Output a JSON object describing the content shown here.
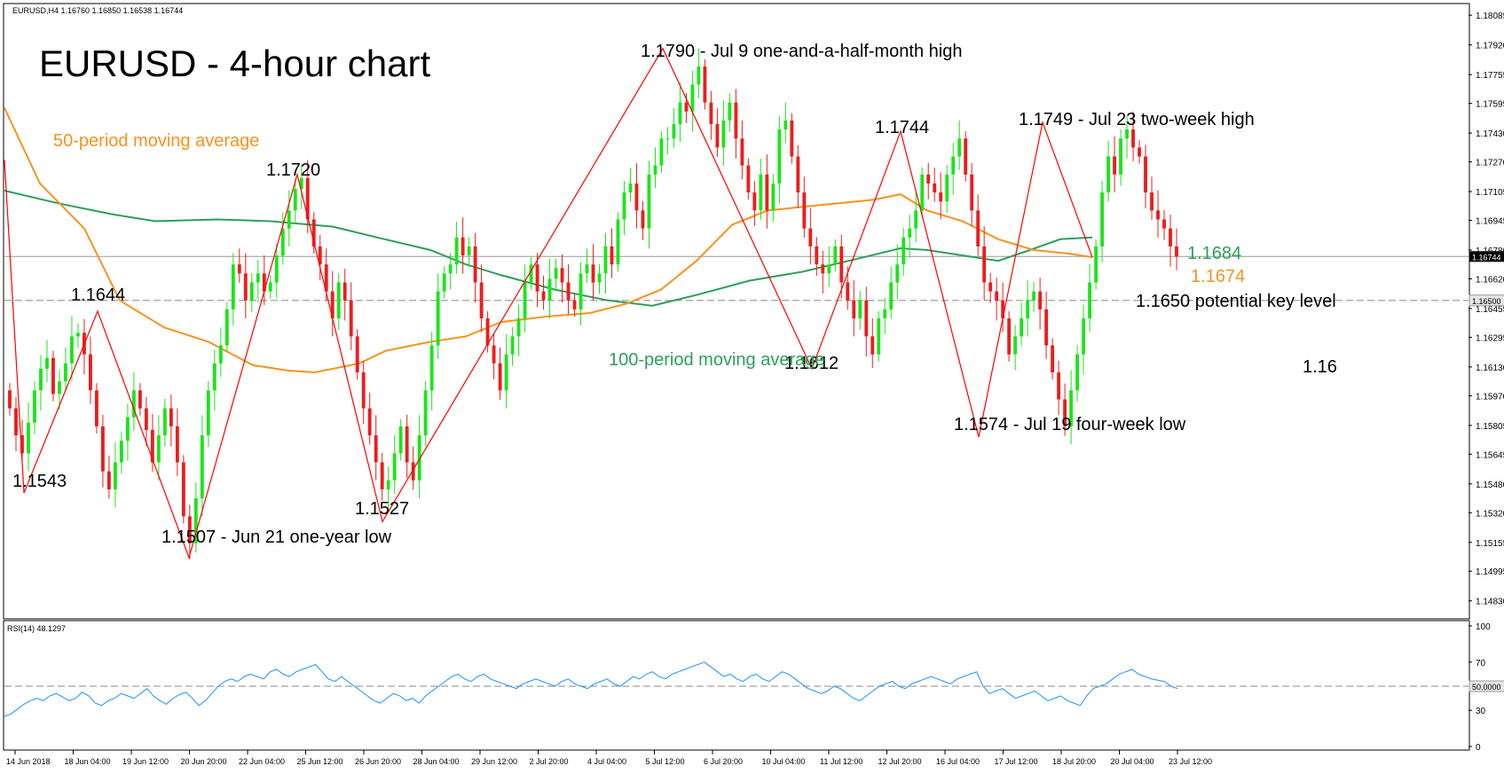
{
  "chart_data": {
    "type": "candlestick",
    "symbol_info": "EURUSD,H4  1.16760 1.16850 1.16538 1.16744",
    "title": "EURUSD - 4-hour chart",
    "ylim": [
      1.1473,
      1.1815
    ],
    "y_ticks": [
      "1.18085",
      "1.17920",
      "1.17755",
      "1.17595",
      "1.17430",
      "1.17270",
      "1.17105",
      "1.16945",
      "1.16780",
      "1.16620",
      "1.16455",
      "1.16295",
      "1.16130",
      "1.15970",
      "1.15805",
      "1.15645",
      "1.15480",
      "1.15320",
      "1.15155",
      "1.14995",
      "1.14830"
    ],
    "x_ticks": [
      "14 Jun 2018",
      "18 Jun 04:00",
      "19 Jun 12:00",
      "20 Jun 20:00",
      "22 Jun 04:00",
      "25 Jun 12:00",
      "26 Jun 20:00",
      "28 Jun 04:00",
      "29 Jun 12:00",
      "2 Jul 20:00",
      "4 Jul 04:00",
      "5 Jul 12:00",
      "6 Jul 20:00",
      "10 Jul 04:00",
      "11 Jul 12:00",
      "12 Jul 20:00",
      "16 Jul 04:00",
      "17 Jul 12:00",
      "18 Jul 20:00",
      "20 Jul 04:00",
      "23 Jul 12:00"
    ],
    "current_price_label": "1.16744",
    "key_level_label": "1.16500",
    "key_level": 1.165,
    "close": [
      1.159,
      1.1575,
      1.1565,
      1.1582,
      1.16,
      1.1612,
      1.1618,
      1.1598,
      1.1605,
      1.1615,
      1.163,
      1.1632,
      1.162,
      1.16,
      1.158,
      1.1555,
      1.1545,
      1.156,
      1.1572,
      1.1585,
      1.16,
      1.159,
      1.1578,
      1.156,
      1.1575,
      1.159,
      1.158,
      1.156,
      1.153,
      1.1515,
      1.154,
      1.1575,
      1.16,
      1.1615,
      1.1625,
      1.1645,
      1.167,
      1.1665,
      1.165,
      1.166,
      1.1665,
      1.1655,
      1.166,
      1.1675,
      1.169,
      1.17,
      1.1712,
      1.1718,
      1.1695,
      1.168,
      1.167,
      1.1655,
      1.164,
      1.166,
      1.165,
      1.163,
      1.161,
      1.159,
      1.1575,
      1.156,
      1.1545,
      1.155,
      1.1565,
      1.158,
      1.156,
      1.155,
      1.1575,
      1.16,
      1.1625,
      1.1655,
      1.1665,
      1.167,
      1.1685,
      1.1675,
      1.168,
      1.166,
      1.164,
      1.1625,
      1.1615,
      1.16,
      1.162,
      1.163,
      1.164,
      1.166,
      1.167,
      1.1655,
      1.165,
      1.1662,
      1.1668,
      1.166,
      1.165,
      1.1645,
      1.1665,
      1.167,
      1.166,
      1.1665,
      1.168,
      1.167,
      1.1695,
      1.171,
      1.1715,
      1.17,
      1.169,
      1.172,
      1.1725,
      1.174,
      1.174,
      1.1748,
      1.176,
      1.1755,
      1.177,
      1.178,
      1.176,
      1.1748,
      1.1735,
      1.175,
      1.176,
      1.174,
      1.1725,
      1.171,
      1.17,
      1.172,
      1.17,
      1.1715,
      1.1745,
      1.175,
      1.173,
      1.171,
      1.169,
      1.168,
      1.167,
      1.1665,
      1.167,
      1.168,
      1.166,
      1.165,
      1.164,
      1.165,
      1.163,
      1.162,
      1.164,
      1.1645,
      1.166,
      1.167,
      1.1685,
      1.169,
      1.17,
      1.172,
      1.1715,
      1.171,
      1.1705,
      1.172,
      1.173,
      1.174,
      1.172,
      1.17,
      1.168,
      1.166,
      1.1655,
      1.165,
      1.164,
      1.162,
      1.163,
      1.164,
      1.165,
      1.1655,
      1.1645,
      1.1625,
      1.161,
      1.1595,
      1.158,
      1.16,
      1.162,
      1.164,
      1.166,
      1.168,
      1.171,
      1.173,
      1.172,
      1.174,
      1.1745,
      1.1735,
      1.173,
      1.171,
      1.17,
      1.1695,
      1.169,
      1.168,
      1.16744
    ],
    "ma50": {
      "name": "50-period moving average",
      "color": "#f7931e",
      "current": "1.1674",
      "points": [
        [
          0,
          1.1757
        ],
        [
          40,
          1.1715
        ],
        [
          90,
          1.169
        ],
        [
          130,
          1.165
        ],
        [
          180,
          1.1635
        ],
        [
          230,
          1.1627
        ],
        [
          280,
          1.1614
        ],
        [
          320,
          1.1611
        ],
        [
          350,
          1.161
        ],
        [
          400,
          1.1615
        ],
        [
          430,
          1.1622
        ],
        [
          480,
          1.1627
        ],
        [
          520,
          1.163
        ],
        [
          560,
          1.1638
        ],
        [
          610,
          1.1641
        ],
        [
          660,
          1.1643
        ],
        [
          700,
          1.1648
        ],
        [
          740,
          1.1656
        ],
        [
          780,
          1.1672
        ],
        [
          820,
          1.1692
        ],
        [
          860,
          1.17
        ],
        [
          900,
          1.1702
        ],
        [
          940,
          1.1704
        ],
        [
          980,
          1.1706
        ],
        [
          1010,
          1.1709
        ],
        [
          1040,
          1.17
        ],
        [
          1080,
          1.1694
        ],
        [
          1120,
          1.1684
        ],
        [
          1160,
          1.1678
        ],
        [
          1200,
          1.1676
        ],
        [
          1226,
          1.1674
        ]
      ]
    },
    "ma100": {
      "name": "100-period moving average",
      "color": "#2e9e5b",
      "current": "1.1684",
      "points": [
        [
          0,
          1.1711
        ],
        [
          60,
          1.1704
        ],
        [
          120,
          1.1698
        ],
        [
          170,
          1.1694
        ],
        [
          240,
          1.1695
        ],
        [
          300,
          1.1694
        ],
        [
          370,
          1.1691
        ],
        [
          420,
          1.1685
        ],
        [
          480,
          1.1678
        ],
        [
          520,
          1.167
        ],
        [
          560,
          1.1664
        ],
        [
          620,
          1.1656
        ],
        [
          680,
          1.165
        ],
        [
          730,
          1.1647
        ],
        [
          780,
          1.1653
        ],
        [
          840,
          1.1661
        ],
        [
          900,
          1.1666
        ],
        [
          960,
          1.1673
        ],
        [
          1010,
          1.1679
        ],
        [
          1040,
          1.1678
        ],
        [
          1080,
          1.1675
        ],
        [
          1120,
          1.1672
        ],
        [
          1150,
          1.1677
        ],
        [
          1190,
          1.1684
        ],
        [
          1226,
          1.1685
        ]
      ]
    },
    "zigzag": [
      {
        "x": 0,
        "y": 1.1728
      },
      {
        "x": 22,
        "y": 1.1543
      },
      {
        "x": 105,
        "y": 1.1644
      },
      {
        "x": 208,
        "y": 1.1507
      },
      {
        "x": 330,
        "y": 1.172
      },
      {
        "x": 426,
        "y": 1.1527
      },
      {
        "x": 742,
        "y": 1.179
      },
      {
        "x": 910,
        "y": 1.1612
      },
      {
        "x": 1010,
        "y": 1.1744
      },
      {
        "x": 1098,
        "y": 1.1574
      },
      {
        "x": 1170,
        "y": 1.1749
      },
      {
        "x": 1226,
        "y": 1.1674
      }
    ],
    "annotations": [
      {
        "text": "1.1644",
        "x": 80,
        "y": 339
      },
      {
        "text": "1.1543",
        "x": 14,
        "y": 549
      },
      {
        "text": "1.1720",
        "x": 300,
        "y": 198
      },
      {
        "text": "1.1507 - Jun 21 one-year low",
        "x": 182,
        "y": 612
      },
      {
        "text": "1.1527",
        "x": 400,
        "y": 580
      },
      {
        "text": "1.1790 - Jul 9 one-and-a-half-month high",
        "x": 722,
        "y": 64
      },
      {
        "text": "1.1744",
        "x": 986,
        "y": 150
      },
      {
        "text": "1.1612",
        "x": 884,
        "y": 416
      },
      {
        "text": "1.1749 - Jul 23 two-week high",
        "x": 1148,
        "y": 141
      },
      {
        "text": "1.1574 - Jul 19 four-week low",
        "x": 1075,
        "y": 485
      },
      {
        "text": "1.1650 potential key level",
        "x": 1280,
        "y": 346
      },
      {
        "text": "1.16",
        "x": 1468,
        "y": 420
      }
    ],
    "rsi": {
      "label": "RSI(14) 48.1297",
      "ylim": [
        0,
        100
      ],
      "ticks": [
        "100",
        "70",
        "30",
        "0"
      ],
      "level_label": "50.0000",
      "level": 50,
      "values": [
        25,
        27,
        31,
        35,
        38,
        40,
        38,
        42,
        44,
        41,
        38,
        40,
        45,
        42,
        36,
        34,
        38,
        40,
        44,
        42,
        40,
        44,
        48,
        42,
        38,
        35,
        40,
        43,
        45,
        40,
        34,
        38,
        44,
        50,
        54,
        56,
        54,
        58,
        60,
        58,
        56,
        62,
        64,
        60,
        58,
        62,
        64,
        66,
        68,
        62,
        56,
        54,
        58,
        54,
        50,
        46,
        42,
        38,
        36,
        40,
        44,
        42,
        38,
        40,
        36,
        42,
        46,
        50,
        54,
        58,
        60,
        56,
        54,
        58,
        60,
        56,
        54,
        52,
        50,
        48,
        52,
        54,
        56,
        54,
        52,
        50,
        54,
        56,
        52,
        50,
        48,
        52,
        54,
        56,
        52,
        50,
        54,
        58,
        56,
        60,
        62,
        58,
        56,
        60,
        62,
        64,
        66,
        68,
        70,
        66,
        62,
        58,
        60,
        56,
        54,
        58,
        60,
        56,
        54,
        58,
        62,
        60,
        56,
        52,
        48,
        46,
        44,
        46,
        50,
        48,
        44,
        40,
        38,
        42,
        46,
        50,
        52,
        54,
        50,
        48,
        52,
        54,
        56,
        58,
        56,
        54,
        52,
        56,
        58,
        60,
        62,
        50,
        44,
        46,
        48,
        44,
        40,
        42,
        44,
        46,
        42,
        38,
        40,
        42,
        38,
        36,
        34,
        42,
        48,
        50,
        52,
        56,
        60,
        62,
        64,
        60,
        58,
        56,
        55,
        54,
        50,
        48
      ]
    }
  }
}
